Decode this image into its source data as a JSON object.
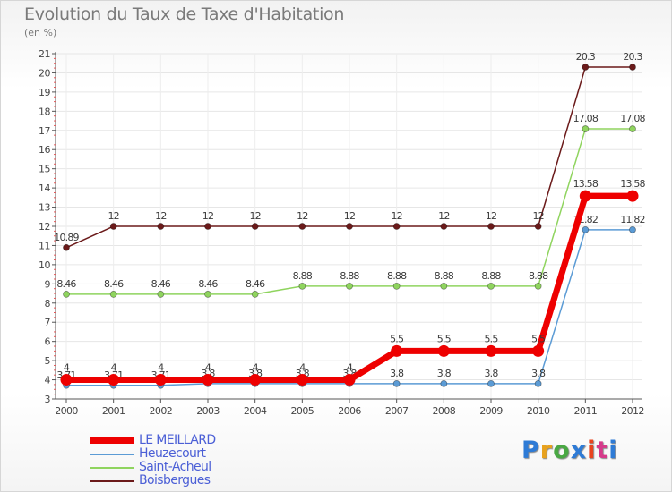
{
  "title": "Evolution du Taux de Taxe d'Habitation",
  "subtitle": "(en %)",
  "brand": {
    "text": "Proxiti",
    "colors": [
      "#2e7bd6",
      "#e8a21e",
      "#4aa844",
      "#2e7bd6",
      "#e8441e",
      "#d63a8a",
      "#2e7bd6"
    ]
  },
  "chart_data": {
    "type": "line",
    "x": [
      "2000",
      "2001",
      "2002",
      "2003",
      "2004",
      "2005",
      "2006",
      "2007",
      "2008",
      "2009",
      "2010",
      "2011",
      "2012"
    ],
    "ylim": [
      3,
      21
    ],
    "yticks": [
      3,
      4,
      5,
      6,
      7,
      8,
      9,
      10,
      11,
      12,
      13,
      14,
      15,
      16,
      17,
      18,
      19,
      20,
      21
    ],
    "grid": true,
    "legend_position": "bottom-left",
    "series": [
      {
        "name": "Boisbergues",
        "color": "#6b1a1a",
        "values": [
          10.89,
          12,
          12,
          12,
          12,
          12,
          12,
          12,
          12,
          12,
          12,
          20.3,
          20.3
        ],
        "labels": [
          "10.89",
          "12",
          "12",
          "12",
          "12",
          "12",
          "12",
          "12",
          "12",
          "12",
          "12",
          "20.3",
          "20.3"
        ]
      },
      {
        "name": "Saint-Acheul",
        "color": "#8fd45e",
        "values": [
          8.46,
          8.46,
          8.46,
          8.46,
          8.46,
          8.88,
          8.88,
          8.88,
          8.88,
          8.88,
          8.88,
          17.08,
          17.08
        ],
        "labels": [
          "8.46",
          "8.46",
          "8.46",
          "8.46",
          "8.46",
          "8.88",
          "8.88",
          "8.88",
          "8.88",
          "8.88",
          "8.88",
          "17.08",
          "17.08"
        ]
      },
      {
        "name": "Heuzecourt",
        "color": "#5b9bd5",
        "values": [
          3.71,
          3.71,
          3.71,
          3.8,
          3.8,
          3.8,
          3.8,
          3.8,
          3.8,
          3.8,
          3.8,
          11.82,
          11.82
        ],
        "labels": [
          "3.71",
          "3.71",
          "3.71",
          "3.8",
          "3.8",
          "3.8",
          "3.8",
          "3.8",
          "3.8",
          "3.8",
          "3.8",
          "11.82",
          "11.82"
        ]
      },
      {
        "name": "LE MEILLARD",
        "color": "#ee0000",
        "values": [
          4,
          4,
          4,
          4,
          4,
          4,
          4,
          5.5,
          5.5,
          5.5,
          5.5,
          13.58,
          13.58
        ],
        "labels": [
          "4",
          "4",
          "4",
          "4",
          "4",
          "4",
          "4",
          "5.5",
          "5.5",
          "5.5",
          "5.5",
          "13.58",
          "13.58"
        ]
      }
    ],
    "legend_order": [
      "LE MEILLARD",
      "Heuzecourt",
      "Saint-Acheul",
      "Boisbergues"
    ]
  }
}
